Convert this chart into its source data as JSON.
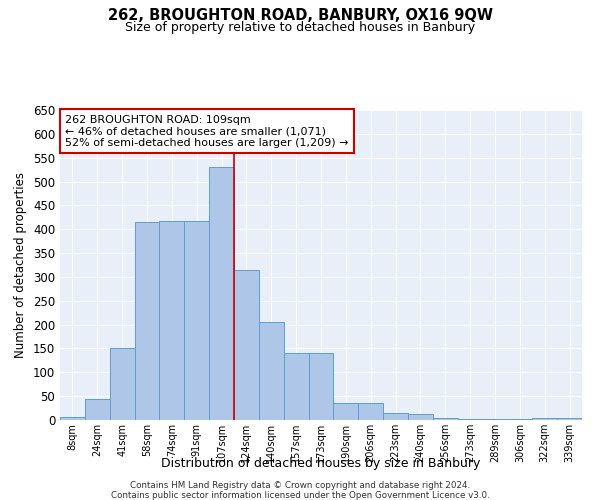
{
  "title": "262, BROUGHTON ROAD, BANBURY, OX16 9QW",
  "subtitle": "Size of property relative to detached houses in Banbury",
  "xlabel": "Distribution of detached houses by size in Banbury",
  "ylabel": "Number of detached properties",
  "footer_line1": "Contains HM Land Registry data © Crown copyright and database right 2024.",
  "footer_line2": "Contains public sector information licensed under the Open Government Licence v3.0.",
  "categories": [
    "8sqm",
    "24sqm",
    "41sqm",
    "58sqm",
    "74sqm",
    "91sqm",
    "107sqm",
    "124sqm",
    "140sqm",
    "157sqm",
    "173sqm",
    "190sqm",
    "206sqm",
    "223sqm",
    "240sqm",
    "256sqm",
    "273sqm",
    "289sqm",
    "306sqm",
    "322sqm",
    "339sqm"
  ],
  "values": [
    7,
    44,
    150,
    415,
    418,
    418,
    530,
    315,
    205,
    140,
    140,
    35,
    35,
    15,
    12,
    5,
    2,
    2,
    2,
    5,
    5
  ],
  "bar_color": "#aec6e8",
  "bar_edge_color": "#5a9fd4",
  "bg_color": "#e8eff8",
  "grid_color": "#ffffff",
  "annotation_text": "262 BROUGHTON ROAD: 109sqm\n← 46% of detached houses are smaller (1,071)\n52% of semi-detached houses are larger (1,209) →",
  "annotation_box_color": "#ffffff",
  "annotation_box_edge_color": "#cc0000",
  "vline_x": 6.5,
  "vline_color": "#cc0000",
  "ylim": [
    0,
    650
  ],
  "yticks": [
    0,
    50,
    100,
    150,
    200,
    250,
    300,
    350,
    400,
    450,
    500,
    550,
    600,
    650
  ]
}
